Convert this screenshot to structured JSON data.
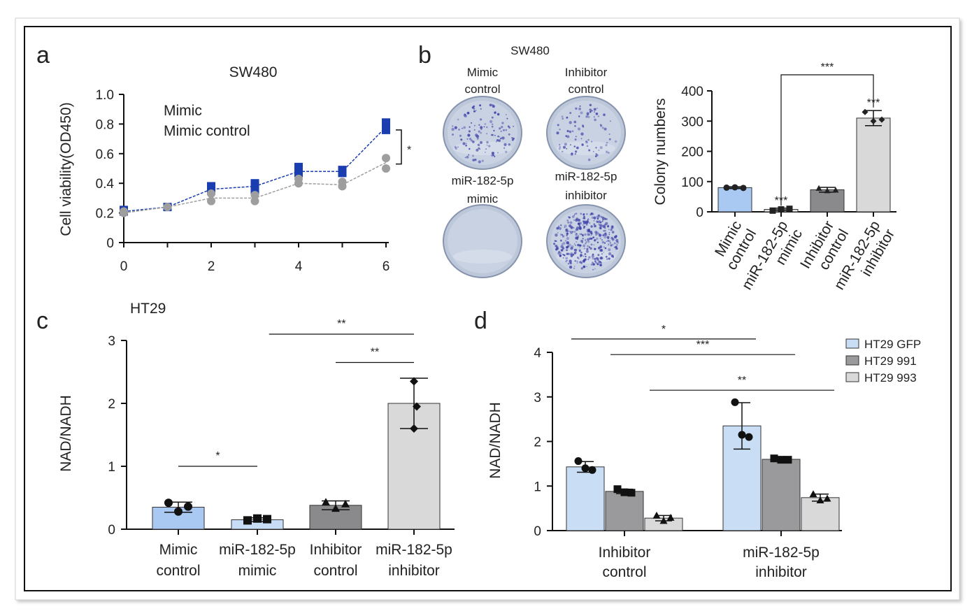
{
  "figure": {
    "colors": {
      "frame": "#111111",
      "blue_dark": "#1a3db0",
      "grey_line": "#9e9e9e",
      "bar_blue": "#a9c8f2",
      "bar_dgrey": "#8a8a8c",
      "bar_lgrey": "#d9d9d9",
      "bar_paleblue": "#c9def5",
      "bar_mgrey": "#b8b8b8"
    },
    "panels": {
      "a": {
        "letter": "a",
        "chart_data": {
          "type": "line",
          "title": "SW480",
          "ylabel": "Cell viability(OD450)",
          "xlabel": "",
          "xlim": [
            0,
            6
          ],
          "ylim": [
            0,
            1.0
          ],
          "x_ticks": [
            "0",
            "2",
            "4",
            "6"
          ],
          "y_ticks": [
            "0",
            "0.2",
            "0.4",
            "0.6",
            "0.8",
            "1.0"
          ],
          "legend": [
            "Mimic",
            "Mimic control"
          ],
          "series": [
            {
              "name": "Mimic",
              "x": [
                0,
                1,
                2,
                3,
                4,
                5,
                6
              ],
              "y": [
                0.21,
                0.24,
                0.36,
                0.38,
                0.48,
                0.48,
                0.78
              ],
              "points": [
                [
                  0,
                  0.22
                ],
                [
                  0,
                  0.21
                ],
                [
                  1,
                  0.24
                ],
                [
                  2,
                  0.38
                ],
                [
                  2,
                  0.35
                ],
                [
                  3,
                  0.4
                ],
                [
                  3,
                  0.37
                ],
                [
                  3,
                  0.35
                ],
                [
                  4,
                  0.51
                ],
                [
                  4,
                  0.47
                ],
                [
                  5,
                  0.49
                ],
                [
                  5,
                  0.47
                ],
                [
                  6,
                  0.81
                ],
                [
                  6,
                  0.76
                ]
              ]
            },
            {
              "name": "Mimic control",
              "x": [
                0,
                1,
                2,
                3,
                4,
                5,
                6
              ],
              "y": [
                0.2,
                0.24,
                0.3,
                0.3,
                0.4,
                0.39,
                0.54
              ],
              "points": [
                [
                  0,
                  0.21
                ],
                [
                  0,
                  0.2
                ],
                [
                  1,
                  0.24
                ],
                [
                  2,
                  0.33
                ],
                [
                  2,
                  0.28
                ],
                [
                  3,
                  0.32
                ],
                [
                  3,
                  0.28
                ],
                [
                  4,
                  0.43
                ],
                [
                  4,
                  0.4
                ],
                [
                  5,
                  0.41
                ],
                [
                  5,
                  0.38
                ],
                [
                  6,
                  0.57
                ],
                [
                  6,
                  0.5
                ]
              ]
            }
          ],
          "annotation": "*"
        }
      },
      "b": {
        "letter": "b",
        "title": "SW480",
        "plates": [
          {
            "label1": "Mimic",
            "label2": "control",
            "density": 0.35
          },
          {
            "label1": "Inhibitor",
            "label2": "control",
            "density": 0.25
          },
          {
            "label1": "miR-182-5p",
            "label2": "mimic",
            "density": 0.0
          },
          {
            "label1": "miR-182-5p",
            "label2": "inhibitor",
            "density": 1.0
          }
        ],
        "chart_data": {
          "type": "bar",
          "ylabel": "Colony numbers",
          "ylim": [
            0,
            400
          ],
          "y_ticks": [
            "0",
            "100",
            "200",
            "300",
            "400"
          ],
          "categories": [
            "Mimic control",
            "miR-182-5p mimic",
            "Inhibitor control",
            "miR-182-5p inhibitor"
          ],
          "cat_lines": [
            [
              "Mimic",
              "control"
            ],
            [
              "miR-182-5p",
              "mimic"
            ],
            [
              "Inhibitor",
              "control"
            ],
            [
              "miR-182-5p",
              "inhibitor"
            ]
          ],
          "values": [
            80,
            8,
            73,
            310
          ],
          "errors": [
            3,
            4,
            8,
            25
          ],
          "points": [
            [
              80,
              81,
              79
            ],
            [
              4,
              8,
              10
            ],
            [
              78,
              70,
              72
            ],
            [
              330,
              300,
              305
            ]
          ],
          "bar_labels": [
            "",
            "***",
            "",
            "***"
          ],
          "bracket_label": "***"
        }
      },
      "c": {
        "letter": "c",
        "title": "HT29",
        "chart_data": {
          "type": "bar",
          "ylabel": "NAD/NADH",
          "ylim": [
            0,
            3
          ],
          "y_ticks": [
            "0",
            "1",
            "2",
            "3"
          ],
          "categories": [
            "Mimic control",
            "miR-182-5p mimic",
            "Inhibitor control",
            "miR-182-5p inhibitor"
          ],
          "cat_lines": [
            [
              "Mimic",
              "control"
            ],
            [
              "miR-182-5p",
              "mimic"
            ],
            [
              "Inhibitor",
              "control"
            ],
            [
              "miR-182-5p",
              "inhibitor"
            ]
          ],
          "values": [
            0.35,
            0.15,
            0.38,
            2.0
          ],
          "errors": [
            0.08,
            0.03,
            0.07,
            0.4
          ],
          "points": [
            [
              0.42,
              0.28,
              0.36
            ],
            [
              0.14,
              0.17,
              0.16
            ],
            [
              0.43,
              0.33,
              0.4
            ],
            [
              2.35,
              1.95,
              1.6
            ]
          ],
          "sig": [
            {
              "from": 0,
              "to": 1,
              "y": 1.0,
              "label": "*"
            },
            {
              "from": 1.15,
              "to": 3,
              "y": 3.1,
              "label": "**"
            },
            {
              "from": 2,
              "to": 3,
              "y": 2.65,
              "label": "**"
            }
          ]
        }
      },
      "d": {
        "letter": "d",
        "chart_data": {
          "type": "bar",
          "ylabel": "NAD/NADH",
          "ylim": [
            0,
            4
          ],
          "y_ticks": [
            "0",
            "1",
            "2",
            "3",
            "4"
          ],
          "categories": [
            "Inhibitor control",
            "miR-182-5p inhibitor"
          ],
          "cat_lines": [
            [
              "Inhibitor",
              "control"
            ],
            [
              "miR-182-5p",
              "inhibitor"
            ]
          ],
          "legend": [
            "HT29 GFP",
            "HT29 991",
            "HT29 993"
          ],
          "series": [
            {
              "name": "HT29 GFP",
              "values": [
                1.43,
                2.35
              ],
              "errors": [
                0.12,
                0.52
              ],
              "points": [
                [
                  1.56,
                  1.4,
                  1.36
                ],
                [
                  2.88,
                  2.15,
                  2.1
                ]
              ]
            },
            {
              "name": "HT29 991",
              "values": [
                0.88,
                1.6
              ],
              "errors": [
                0.05,
                0.03
              ],
              "points": [
                [
                  0.93,
                  0.86,
                  0.85
                ],
                [
                  1.62,
                  1.59,
                  1.59
                ]
              ]
            },
            {
              "name": "HT29 993",
              "values": [
                0.28,
                0.74
              ],
              "errors": [
                0.06,
                0.08
              ],
              "points": [
                [
                  0.34,
                  0.22,
                  0.29
                ],
                [
                  0.82,
                  0.68,
                  0.72
                ]
              ]
            }
          ],
          "sig": [
            {
              "x1": 0,
              "x2": 3,
              "y": 4.3,
              "label": "*"
            },
            {
              "x1": 1,
              "x2": 4,
              "y": 3.95,
              "label": "***"
            },
            {
              "x1": 2,
              "x2": 5,
              "y": 3.15,
              "label": "**"
            }
          ]
        }
      }
    }
  }
}
